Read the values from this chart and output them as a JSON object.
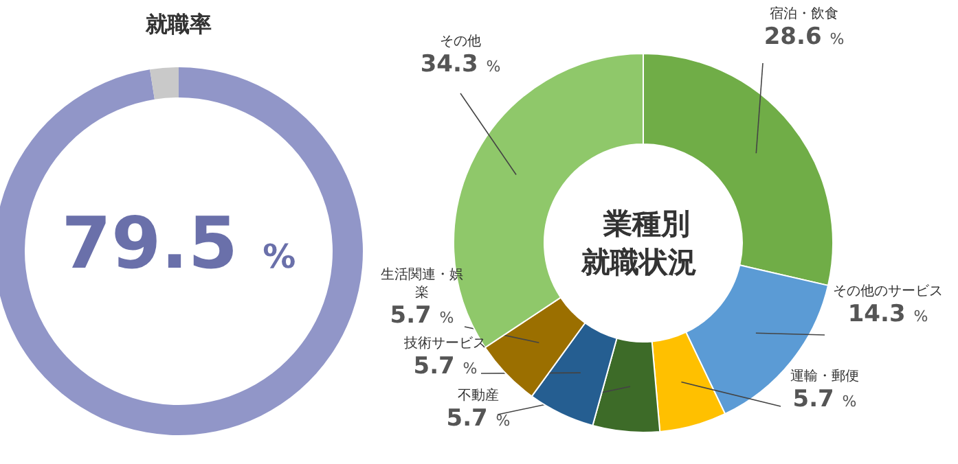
{
  "chart_data": [
    {
      "type": "donut",
      "title": "就職率",
      "categories": [
        null,
        null
      ],
      "values": [
        97.5,
        2.5
      ],
      "colors": [
        "#9196c8",
        "#c9c9c9"
      ],
      "annotations": [
        "79.5 %"
      ]
    },
    {
      "type": "donut",
      "title": "業種別就職状況",
      "categories": [
        "宿泊・飲食",
        "その他のサービス",
        "運輸・郵便",
        "不動産",
        "技術サービス",
        "生活関連・娯楽",
        "その他"
      ],
      "values": [
        28.6,
        14.3,
        5.7,
        5.7,
        5.7,
        5.7,
        34.3
      ],
      "colors": [
        "#70ad47",
        "#5b9bd5",
        "#ffc000",
        "#3d6b28",
        "#255e91",
        "#9b6f00",
        "#8fc86a"
      ],
      "value_labels": [
        "28.6 %",
        "14.3 %",
        "5.7 %",
        "5.7 %",
        "5.7 %",
        "5.7 %",
        "34.3 %"
      ]
    }
  ]
}
